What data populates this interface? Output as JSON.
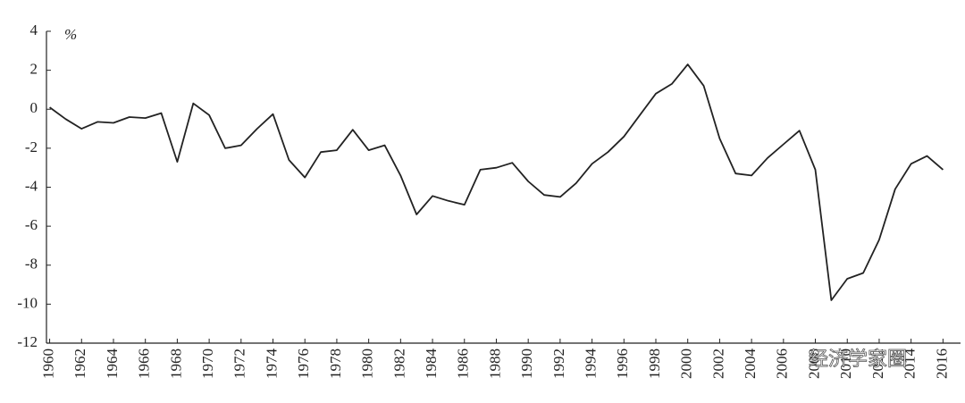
{
  "chart_data": {
    "type": "line",
    "unit_label": "%",
    "x": [
      1960,
      1961,
      1962,
      1963,
      1964,
      1965,
      1966,
      1967,
      1968,
      1969,
      1970,
      1971,
      1972,
      1973,
      1974,
      1975,
      1976,
      1977,
      1978,
      1979,
      1980,
      1981,
      1982,
      1983,
      1984,
      1985,
      1986,
      1987,
      1988,
      1989,
      1990,
      1991,
      1992,
      1993,
      1994,
      1995,
      1996,
      1997,
      1998,
      1999,
      2000,
      2001,
      2002,
      2003,
      2004,
      2005,
      2006,
      2007,
      2008,
      2009,
      2010,
      2011,
      2012,
      2013,
      2014,
      2015,
      2016
    ],
    "values": [
      0.1,
      -0.5,
      -1.0,
      -0.65,
      -0.7,
      -0.4,
      -0.45,
      -0.2,
      -2.7,
      0.3,
      -0.3,
      -2.0,
      -1.85,
      -1.0,
      -0.25,
      -2.6,
      -3.5,
      -2.2,
      -2.1,
      -1.05,
      -2.1,
      -1.85,
      -3.4,
      -5.4,
      -4.45,
      -4.7,
      -4.9,
      -3.1,
      -3.0,
      -2.75,
      -3.7,
      -4.4,
      -4.5,
      -3.8,
      -2.8,
      -2.2,
      -1.4,
      -0.3,
      0.8,
      1.3,
      2.3,
      1.2,
      -1.5,
      -3.3,
      -3.4,
      -2.5,
      -1.8,
      -1.1,
      -3.1,
      -9.8,
      -8.7,
      -8.4,
      -6.7,
      -4.1,
      -2.8,
      -2.4,
      -3.1
    ],
    "color": "#222222",
    "xlim": [
      1959.8,
      2017.1
    ],
    "xticks": [
      1960,
      1962,
      1964,
      1966,
      1968,
      1970,
      1972,
      1974,
      1976,
      1978,
      1980,
      1982,
      1984,
      1986,
      1988,
      1990,
      1992,
      1994,
      1996,
      1998,
      2000,
      2002,
      2004,
      2006,
      2008,
      2010,
      2012,
      2014,
      2016
    ],
    "ylim": [
      -12,
      4
    ],
    "yticks": [
      4,
      2,
      0,
      -2,
      -4,
      -6,
      -8,
      -10,
      -12
    ],
    "grid": false
  },
  "watermark": "经济学家圈"
}
